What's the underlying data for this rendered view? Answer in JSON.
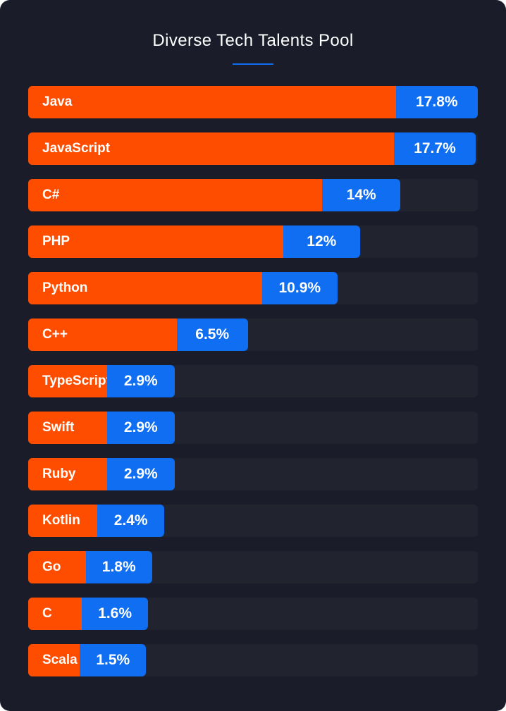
{
  "title": "Diverse Tech Talents Pool",
  "colors": {
    "background": "#1a1d29",
    "track": "#21242f",
    "name_fill": "#ff4d00",
    "value_fill": "#0f6ef2",
    "accent_line": "#0f6ef2"
  },
  "chart_data": {
    "type": "bar",
    "orientation": "horizontal",
    "title": "Diverse Tech Talents Pool",
    "categories": [
      "Java",
      "JavaScript",
      "C#",
      "PHP",
      "Python",
      "C++",
      "TypeScript",
      "Swift",
      "Ruby",
      "Kotlin",
      "Go",
      "C",
      "Scala"
    ],
    "values": [
      17.8,
      17.7,
      14,
      12,
      10.9,
      6.5,
      2.9,
      2.9,
      2.9,
      2.4,
      1.8,
      1.6,
      1.5
    ],
    "value_labels": [
      "17.8%",
      "17.7%",
      "14%",
      "12%",
      "10.9%",
      "6.5%",
      "2.9%",
      "2.9%",
      "2.9%",
      "2.4%",
      "1.8%",
      "1.6%",
      "1.5%"
    ],
    "unit": "%",
    "grid": false,
    "legend": "none"
  }
}
